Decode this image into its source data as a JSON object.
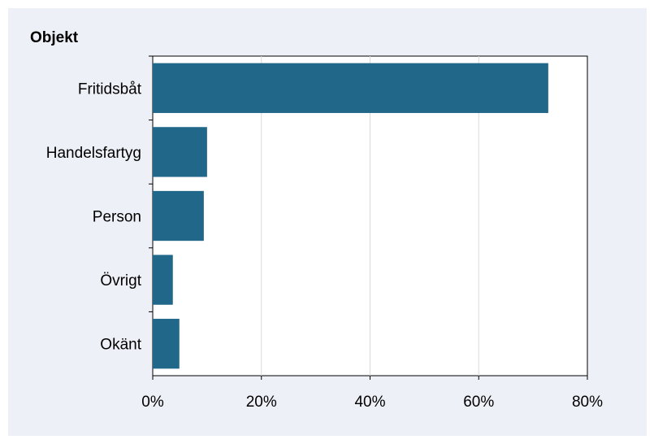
{
  "chart_data": {
    "type": "bar",
    "orientation": "horizontal",
    "title": "Objekt",
    "xlabel": "",
    "ylabel": "",
    "categories": [
      "Fritidsbåt",
      "Handelsfartyg",
      "Person",
      "Övrigt",
      "Okänt"
    ],
    "values": [
      72.8,
      10.0,
      9.4,
      3.7,
      4.9
    ],
    "xlim": [
      0,
      80
    ],
    "xticks": [
      "0%",
      "20%",
      "40%",
      "60%",
      "80%"
    ],
    "grid": "vertical",
    "legend": "none",
    "bar_color": "#20678a",
    "background_color": "#eef0f7"
  }
}
